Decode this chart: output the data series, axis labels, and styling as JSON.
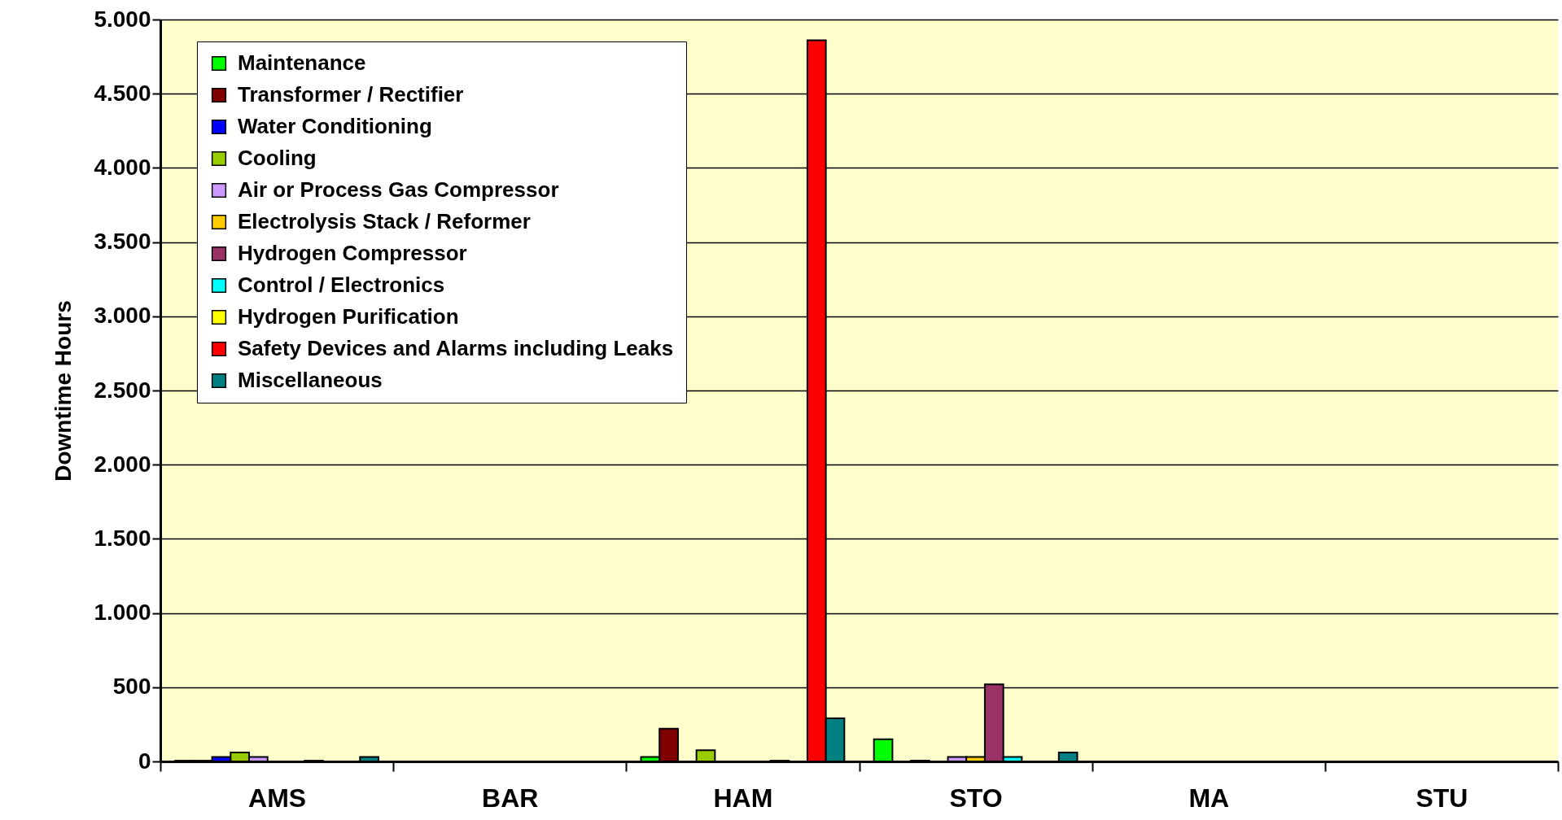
{
  "chart_data": {
    "type": "bar",
    "ylabel": "Downtime Hours",
    "categories": [
      "AMS",
      "BAR",
      "HAM",
      "STO",
      "MA",
      "STU"
    ],
    "series": [
      {
        "name": "Maintenance",
        "color": "#00ff00",
        "values": [
          5,
          null,
          30,
          150,
          null,
          null
        ]
      },
      {
        "name": "Transformer / Rectifier",
        "color": "#800000",
        "values": [
          5,
          null,
          220,
          null,
          null,
          null
        ]
      },
      {
        "name": "Water Conditioning",
        "color": "#0000ff",
        "values": [
          30,
          null,
          null,
          5,
          null,
          null
        ]
      },
      {
        "name": "Cooling",
        "color": "#99cc00",
        "values": [
          60,
          null,
          75,
          null,
          null,
          null
        ]
      },
      {
        "name": "Air or Process Gas Compressor",
        "color": "#cc99ff",
        "values": [
          30,
          null,
          null,
          30,
          null,
          null
        ]
      },
      {
        "name": "Electrolysis Stack / Reformer",
        "color": "#ffcc00",
        "values": [
          null,
          null,
          null,
          30,
          null,
          null
        ]
      },
      {
        "name": "Hydrogen Compressor",
        "color": "#993366",
        "values": [
          null,
          null,
          null,
          520,
          null,
          null
        ]
      },
      {
        "name": "Control / Electronics",
        "color": "#00ffff",
        "values": [
          5,
          null,
          5,
          30,
          null,
          null
        ]
      },
      {
        "name": "Hydrogen Purification",
        "color": "#ffff00",
        "values": [
          null,
          null,
          null,
          null,
          null,
          null
        ]
      },
      {
        "name": "Safety Devices and Alarms including Leaks",
        "color": "#ff0000",
        "values": [
          null,
          null,
          4860,
          null,
          null,
          null
        ]
      },
      {
        "name": "Miscellaneous",
        "color": "#008080",
        "values": [
          30,
          null,
          290,
          60,
          null,
          null
        ]
      }
    ],
    "ylim": [
      0,
      5000
    ],
    "yticks": [
      0,
      {
        "value": 500,
        "label": "500"
      },
      {
        "value": 1000,
        "label": "1.000"
      },
      {
        "value": 1500,
        "label": "1.500"
      },
      {
        "value": 2000,
        "label": "2.000"
      },
      {
        "value": 2500,
        "label": "2.500"
      },
      {
        "value": 3000,
        "label": "3.000"
      },
      {
        "value": 3500,
        "label": "3.500"
      },
      {
        "value": 4000,
        "label": "4.000"
      },
      {
        "value": 4500,
        "label": "4.500"
      },
      {
        "value": 5000,
        "label": "5.000"
      }
    ],
    "grid": "y",
    "legend": "top left"
  }
}
